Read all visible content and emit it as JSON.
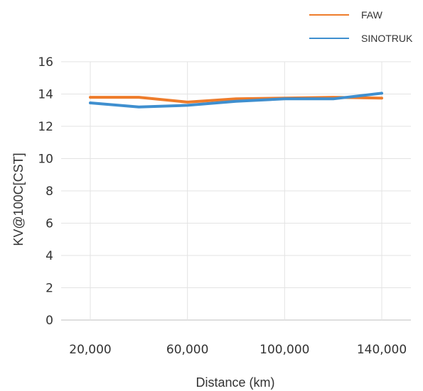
{
  "chart_data": {
    "type": "line",
    "xlabel": "Distance (km)",
    "ylabel": "KV@100C[CST]",
    "x": [
      20000,
      40000,
      60000,
      80000,
      100000,
      120000,
      140000
    ],
    "x_ticks": [
      "20,000",
      "60,000",
      "100,000",
      "140,000"
    ],
    "x_tick_values": [
      20000,
      60000,
      100000,
      140000
    ],
    "xlim": [
      8000,
      152000
    ],
    "ylim": [
      0,
      16
    ],
    "y_ticks": [
      "0",
      "2",
      "4",
      "6",
      "8",
      "10",
      "12",
      "14",
      "16"
    ],
    "grid": {
      "vertical": true,
      "horizontal": true
    },
    "legend_position": "top-right",
    "series": [
      {
        "name": "FAW",
        "color": "#ee7c2b",
        "values": [
          13.8,
          13.8,
          13.5,
          13.7,
          13.75,
          13.8,
          13.75
        ]
      },
      {
        "name": "SINOTRUK",
        "color": "#3f8fcf",
        "values": [
          13.45,
          13.2,
          13.3,
          13.55,
          13.7,
          13.7,
          14.05
        ]
      }
    ]
  }
}
